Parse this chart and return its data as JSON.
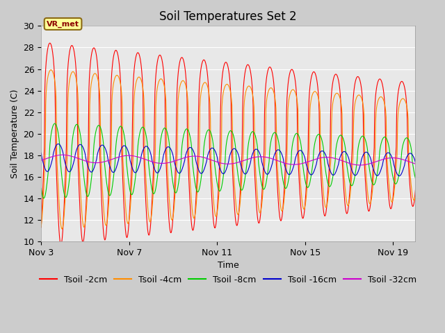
{
  "title": "Soil Temperatures Set 2",
  "xlabel": "Time",
  "ylabel": "Soil Temperature (C)",
  "ylim": [
    10,
    30
  ],
  "xtick_positions": [
    0,
    4,
    8,
    12,
    16
  ],
  "xtick_labels": [
    "Nov 3",
    "Nov 7",
    "Nov 11",
    "Nov 15",
    "Nov 19"
  ],
  "annotation_text": "VR_met",
  "colors": {
    "Tsoil -2cm": "#ff0000",
    "Tsoil -4cm": "#ff8c00",
    "Tsoil -8cm": "#00cc00",
    "Tsoil -16cm": "#0000cc",
    "Tsoil -32cm": "#cc00cc"
  },
  "fig_bg": "#cccccc",
  "plot_bg": "#e8e8e8",
  "title_fontsize": 12,
  "label_fontsize": 9,
  "tick_fontsize": 9,
  "legend_fontsize": 9
}
